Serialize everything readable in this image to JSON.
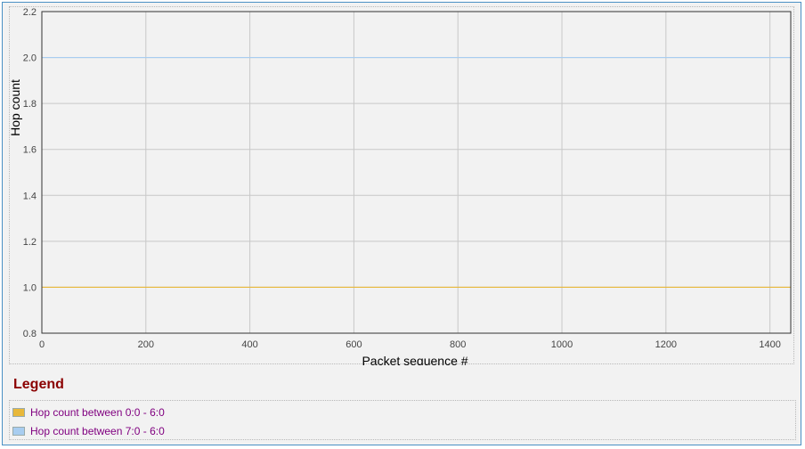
{
  "chart_data": {
    "type": "line",
    "xlabel": "Packet sequence #",
    "ylabel": "Hop count",
    "xlim": [
      0,
      1440
    ],
    "ylim": [
      0.8,
      2.2
    ],
    "x_ticks": [
      0,
      200,
      400,
      600,
      800,
      1000,
      1200,
      1400
    ],
    "y_ticks": [
      0.8,
      1.0,
      1.2,
      1.4,
      1.6,
      1.8,
      2.0,
      2.2
    ],
    "grid": true,
    "series": [
      {
        "name": "Hop count between 0:0 - 6:0",
        "color": "#e8b83a",
        "x": [
          0,
          1440
        ],
        "values": [
          1.0,
          1.0
        ]
      },
      {
        "name": "Hop count between 7:0 - 6:0",
        "color": "#a8cdf0",
        "x": [
          0,
          1440
        ],
        "values": [
          2.0,
          2.0
        ]
      }
    ]
  },
  "legend": {
    "title": "Legend",
    "items": [
      {
        "label": "Hop count between 0:0 - 6:0",
        "color": "#e8b83a"
      },
      {
        "label": "Hop count between 7:0 - 6:0",
        "color": "#a8cdf0"
      }
    ]
  }
}
